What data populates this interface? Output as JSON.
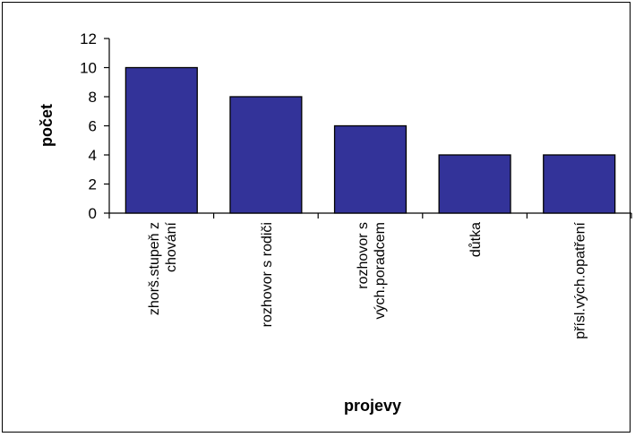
{
  "chart_data": {
    "type": "bar",
    "title": "",
    "xlabel": "projevy",
    "ylabel": "počet",
    "ylim": [
      0,
      12
    ],
    "yticks": [
      0,
      2,
      4,
      6,
      8,
      10,
      12
    ],
    "grid": false,
    "legend": "none",
    "categories": [
      [
        "zhorš.stupeň z",
        "chování"
      ],
      [
        "rozhovor s rodiči"
      ],
      [
        "rozhovor s",
        "vých.poradcem"
      ],
      [
        "důtka"
      ],
      [
        "přísl.vých.opatření"
      ]
    ],
    "values": [
      10,
      8,
      6,
      4,
      4
    ],
    "colors": {
      "bar_fill": "#333399",
      "bar_stroke": "#000000",
      "axis": "#000000"
    }
  }
}
